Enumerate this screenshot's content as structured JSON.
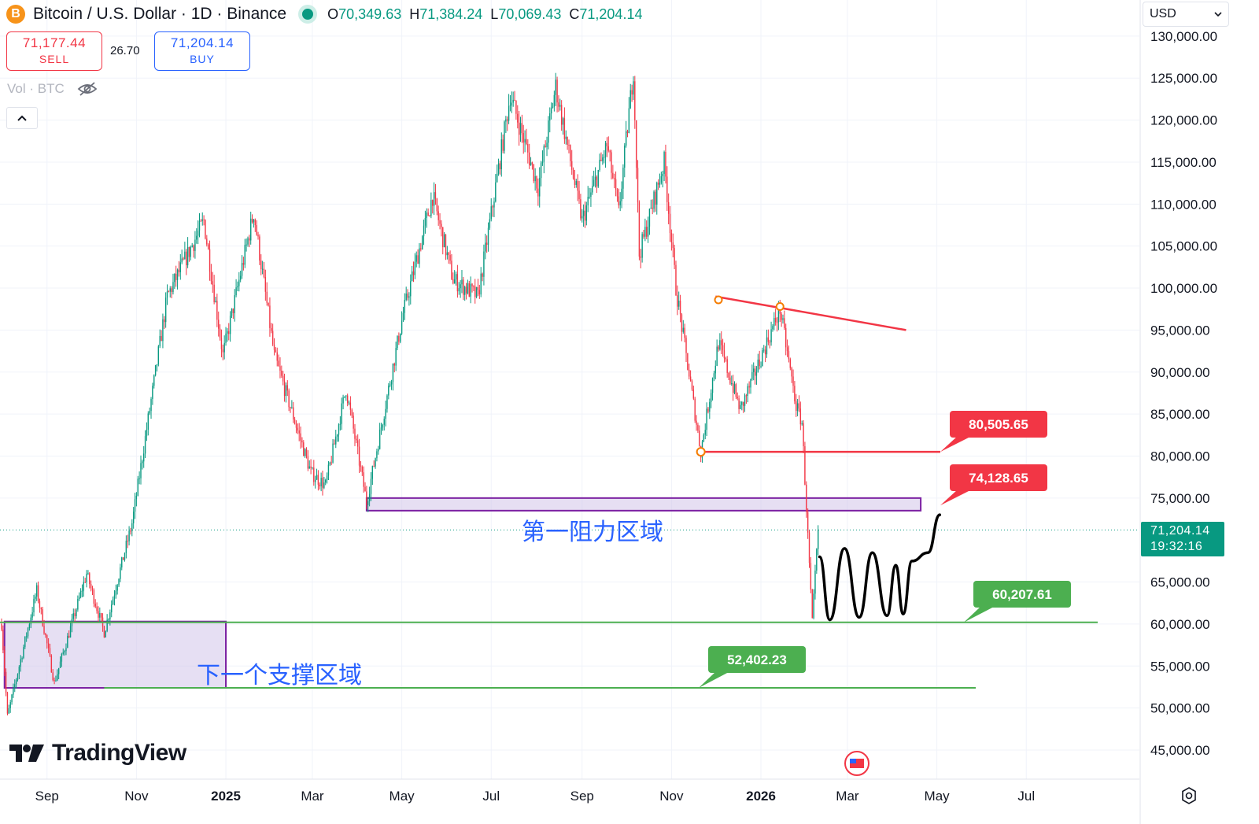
{
  "header": {
    "symbol_icon": "B",
    "title": "Bitcoin / U.S. Dollar · 1D · Binance",
    "ohlc": [
      {
        "key": "O",
        "value": "70,349.63"
      },
      {
        "key": "H",
        "value": "71,384.24"
      },
      {
        "key": "L",
        "value": "70,069.43"
      },
      {
        "key": "C",
        "value": "71,204.14"
      }
    ]
  },
  "trade": {
    "sell_price": "71,177.44",
    "sell_label": "SELL",
    "spread": "26.70",
    "buy_price": "71,204.14",
    "buy_label": "BUY"
  },
  "volume": {
    "label": "Vol · BTC",
    "icon": "eye-crossed-icon"
  },
  "currency": {
    "label": "USD"
  },
  "last_price": {
    "value": "71,204.14",
    "countdown": "19:32:16",
    "color": "#089981"
  },
  "branding": {
    "logo_text": "TradingView"
  },
  "colors": {
    "up": "#089981",
    "down": "#f23645",
    "resistance": "#f23645",
    "support": "#4caf50",
    "zone_fill": "#d1c4e9",
    "zone_border": "#7b1fa2"
  },
  "chart_data": {
    "type": "candlestick",
    "x_axis_ticks": [
      "Sep",
      "Nov",
      "2025",
      "Mar",
      "May",
      "Jul",
      "Sep",
      "Nov",
      "2026",
      "Mar",
      "May",
      "Jul"
    ],
    "y_axis_ticks": [
      "130,000.00",
      "125,000.00",
      "120,000.00",
      "115,000.00",
      "110,000.00",
      "105,000.00",
      "100,000.00",
      "95,000.00",
      "90,000.00",
      "85,000.00",
      "80,000.00",
      "75,000.00",
      "65,000.00",
      "60,000.00",
      "55,000.00",
      "50,000.00",
      "45,000.00"
    ],
    "ylim": [
      43000,
      131000
    ],
    "anchors": [
      [
        "2024-08-01",
        60000
      ],
      [
        "2024-08-05",
        49000
      ],
      [
        "2024-08-25",
        64000
      ],
      [
        "2024-09-06",
        53000
      ],
      [
        "2024-09-28",
        66000
      ],
      [
        "2024-10-10",
        59000
      ],
      [
        "2024-10-29",
        72000
      ],
      [
        "2024-11-22",
        99000
      ],
      [
        "2024-12-17",
        108000
      ],
      [
        "2024-12-30",
        92000
      ],
      [
        "2025-01-20",
        109000
      ],
      [
        "2025-02-03",
        92000
      ],
      [
        "2025-02-28",
        78000
      ],
      [
        "2025-03-10",
        76500
      ],
      [
        "2025-03-24",
        88000
      ],
      [
        "2025-04-07",
        74500
      ],
      [
        "2025-05-02",
        97000
      ],
      [
        "2025-05-22",
        111000
      ],
      [
        "2025-06-05",
        101000
      ],
      [
        "2025-06-22",
        99000
      ],
      [
        "2025-07-14",
        123000
      ],
      [
        "2025-08-02",
        112000
      ],
      [
        "2025-08-14",
        124000
      ],
      [
        "2025-09-01",
        108000
      ],
      [
        "2025-09-18",
        117000
      ],
      [
        "2025-09-26",
        109000
      ],
      [
        "2025-10-06",
        126000
      ],
      [
        "2025-10-10",
        104000
      ],
      [
        "2025-10-27",
        115000
      ],
      [
        "2025-11-04",
        100000
      ],
      [
        "2025-11-21",
        80500
      ],
      [
        "2025-12-03",
        93500
      ],
      [
        "2025-12-18",
        85500
      ],
      [
        "2026-01-14",
        97500
      ],
      [
        "2026-01-25",
        86000
      ],
      [
        "2026-01-29",
        84000
      ],
      [
        "2026-02-05",
        60200
      ],
      [
        "2026-02-09",
        71204
      ]
    ],
    "last_close": 71204.14,
    "annotations": {
      "resistance_trendline": {
        "from": [
          "2025-12-01",
          99000
        ],
        "to": [
          "2026-04-10",
          95000
        ],
        "points": [
          [
            "2025-12-03",
            98600
          ],
          [
            "2026-01-14",
            97800
          ]
        ]
      },
      "resistance_level": {
        "value": 80505.65,
        "label": "80,505.65",
        "from": "2025-11-21"
      },
      "zone_first_resistance": {
        "from": "2025-04-07",
        "to": "2026-04-20",
        "low": 73500,
        "high": 75000,
        "label_value": 74128.65,
        "label": "74,128.65",
        "caption": "第一阻力区域"
      },
      "support_level": {
        "value": 60207.61,
        "label": "60,207.61"
      },
      "support_level_2": {
        "value": 52402.23,
        "label": "52,402.23",
        "from": "2024-10-10"
      },
      "zone_next_support": {
        "from": "2024-08-03",
        "to": "2025-01-01",
        "low": 52400,
        "high": 60300,
        "caption": "下一个支撑区域"
      },
      "projection_path": [
        [
          "2026-02-10",
          68000
        ],
        [
          "2026-02-17",
          60500
        ],
        [
          "2026-02-27",
          69000
        ],
        [
          "2026-03-09",
          60800
        ],
        [
          "2026-03-18",
          68500
        ],
        [
          "2026-03-28",
          61000
        ],
        [
          "2026-04-03",
          67000
        ],
        [
          "2026-04-08",
          61200
        ],
        [
          "2026-04-14",
          67500
        ],
        [
          "2026-04-25",
          68500
        ],
        [
          "2026-05-03",
          73000
        ]
      ]
    }
  }
}
